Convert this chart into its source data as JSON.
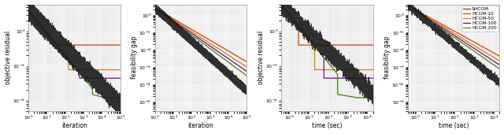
{
  "colors": {
    "SHCGM": "#1a1a1a",
    "HCGM-10": "#cc4400",
    "HCGM-50": "#cc8800",
    "HCGM-100": "#880099",
    "HCGM-200": "#448800"
  },
  "legend_labels": [
    "SHCGM",
    "HCGM-10",
    "HCGM-50",
    "HCGM-100",
    "HCGM-200"
  ],
  "panel1": {
    "xlabel": "iteration",
    "ylabel": "objective residual",
    "xlim": [
      1.0,
      100000.0
    ],
    "ylim": [
      0.005,
      6.0
    ]
  },
  "panel2": {
    "xlabel": "iteration",
    "ylabel": "feasibility gap",
    "xlim": [
      1.0,
      100000.0
    ],
    "ylim": [
      3e-06,
      4.0
    ]
  },
  "panel3": {
    "xlabel": "time (sec)",
    "ylabel": "objective residual",
    "xlim": [
      0.4,
      20000.0
    ],
    "ylim": [
      0.005,
      6.0
    ]
  },
  "panel4": {
    "xlabel": "time (sec)",
    "ylabel": "feasibility gap",
    "xlim": [
      0.4,
      20000.0
    ],
    "ylim": [
      3e-06,
      4.0
    ]
  },
  "linewidth": 0.9,
  "shcgm_linewidth": 0.7,
  "background_color": "#ebebeb"
}
